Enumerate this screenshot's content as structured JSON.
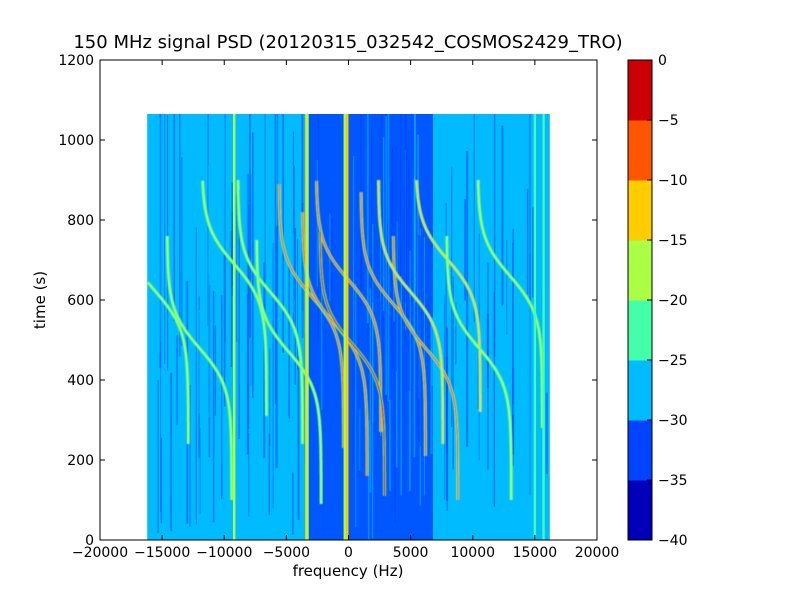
{
  "chart_data": {
    "type": "heatmap",
    "title": "150 MHz signal PSD (20120315_032542_COSMOS2429_TRO)",
    "xlabel": "frequency (Hz)",
    "ylabel": "time (s)",
    "xlim": [
      -20000,
      20000
    ],
    "ylim": [
      0,
      1200
    ],
    "xticks": [
      -20000,
      -15000,
      -10000,
      -5000,
      0,
      5000,
      10000,
      15000,
      20000
    ],
    "xtick_labels": [
      "−20000",
      "−15000",
      "−10000",
      "−5000",
      "0",
      "5000",
      "10000",
      "15000",
      "20000"
    ],
    "yticks": [
      0,
      200,
      400,
      600,
      800,
      1000,
      1200
    ],
    "ytick_labels": [
      "0",
      "200",
      "400",
      "600",
      "800",
      "1000",
      "1200"
    ],
    "data_extent": {
      "x": [
        -16200,
        16200
      ],
      "y": [
        0,
        1065
      ]
    },
    "background_level": -28,
    "noise_floor_band": {
      "x": [
        -3500,
        6800
      ],
      "level": -33
    },
    "colorbar": {
      "levels": [
        -40,
        -35,
        -30,
        -25,
        -20,
        -15,
        -10,
        -5,
        0
      ],
      "tick_labels": [
        "−40",
        "−35",
        "−30",
        "−25",
        "−20",
        "−15",
        "−10",
        "−5",
        "0"
      ],
      "colors": [
        "#0000bb",
        "#0044ff",
        "#00bbff",
        "#44ffaa",
        "#aaff44",
        "#ffcc00",
        "#ff5500",
        "#cc0000"
      ]
    },
    "vertical_lines": [
      {
        "x": -9200,
        "level": -20
      },
      {
        "x": -3400,
        "level": -15
      },
      {
        "x": -3300,
        "level": -20
      },
      {
        "x": -300,
        "level": -20
      },
      {
        "x": -100,
        "level": -15
      },
      {
        "x": 15000,
        "level": -22
      },
      {
        "x": 15700,
        "level": -22
      }
    ],
    "doppler_traces": [
      {
        "x_center": -15500,
        "t_center": 620,
        "level": -20
      },
      {
        "x_center": -12000,
        "t_center": 480,
        "level": -20
      },
      {
        "x_center": -9200,
        "t_center": 690,
        "level": -20
      },
      {
        "x_center": -6300,
        "t_center": 620,
        "level": -18
      },
      {
        "x_center": -4800,
        "t_center": 470,
        "level": -18
      },
      {
        "x_center": -3000,
        "t_center": 610,
        "level": -10
      },
      {
        "x_center": -1100,
        "t_center": 540,
        "level": -8
      },
      {
        "x_center": 0,
        "t_center": 650,
        "level": -8
      },
      {
        "x_center": 300,
        "t_center": 490,
        "level": -5
      },
      {
        "x_center": 3600,
        "t_center": 590,
        "level": -10
      },
      {
        "x_center": 6200,
        "t_center": 480,
        "level": -8
      },
      {
        "x_center": 5000,
        "t_center": 620,
        "level": -12
      },
      {
        "x_center": 8000,
        "t_center": 700,
        "level": -15
      },
      {
        "x_center": 10500,
        "t_center": 480,
        "level": -20
      },
      {
        "x_center": 13000,
        "t_center": 660,
        "level": -20
      }
    ]
  }
}
